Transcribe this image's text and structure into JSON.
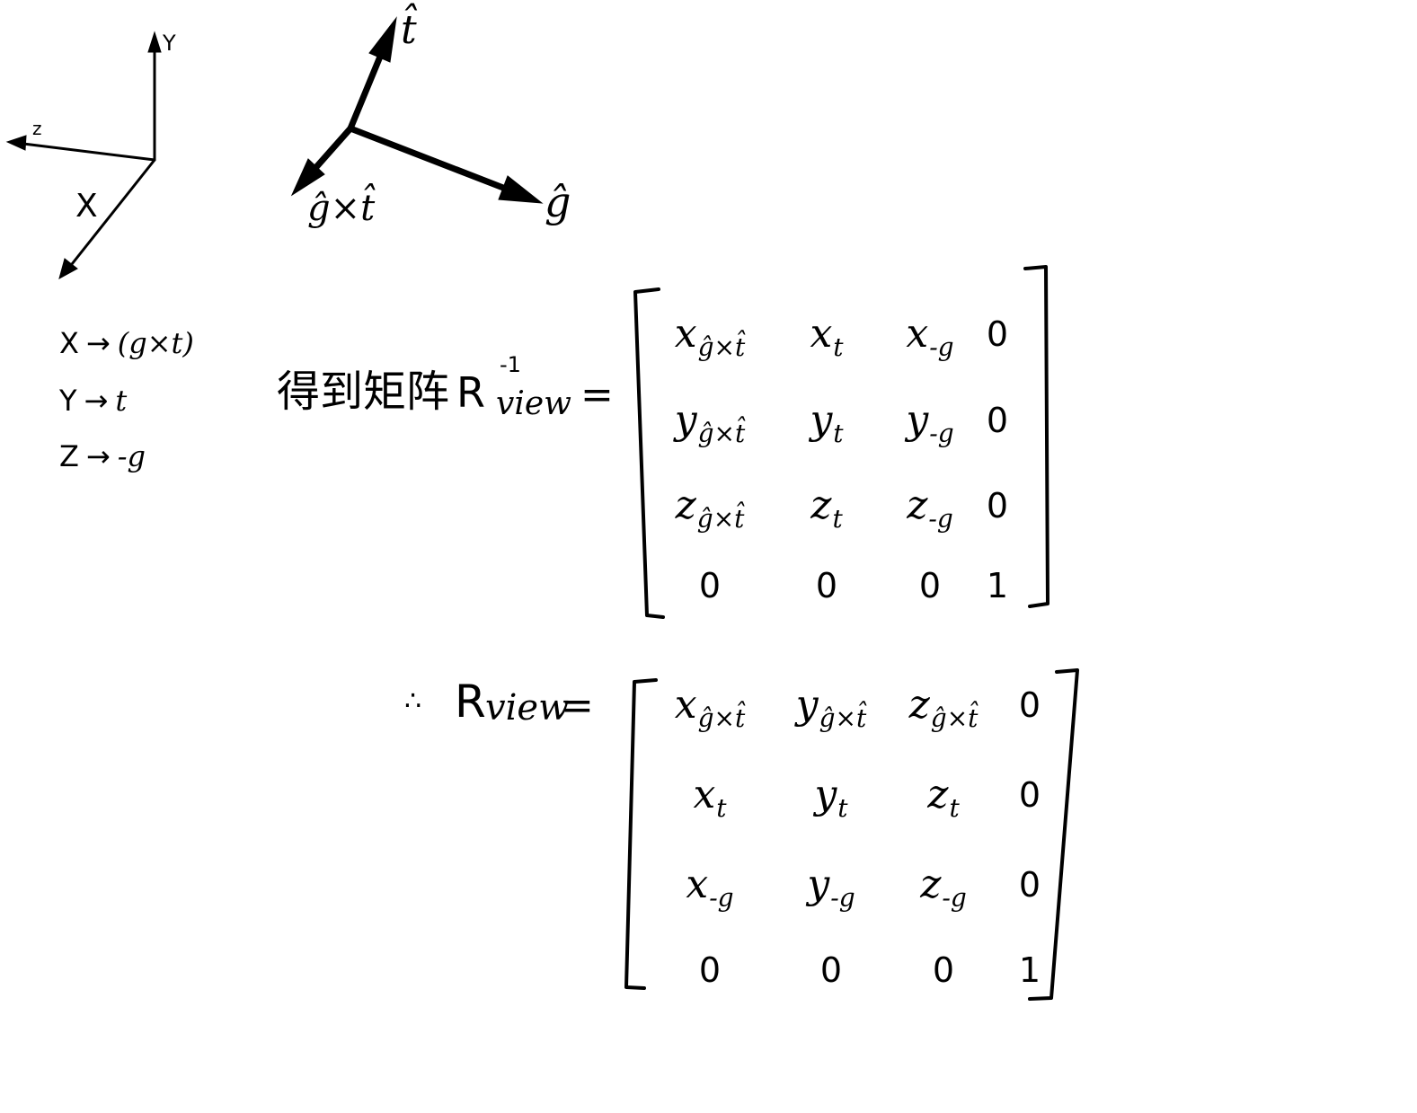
{
  "axes_diagram": {
    "y_label": "Y",
    "z_label": "z",
    "x_label": "X"
  },
  "vector_diagram": {
    "t_label": "t̂",
    "g_cross_t_label": "ĝ×t̂",
    "g_label": "ĝ"
  },
  "mapping": [
    {
      "lhs": "X",
      "arrow": "→",
      "rhs": "(g×t)"
    },
    {
      "lhs": "Y",
      "arrow": "→",
      "rhs": "t"
    },
    {
      "lhs": "Z",
      "arrow": "→",
      "rhs": "-g"
    }
  ],
  "inverse_equation": {
    "prefix": "得到矩阵",
    "symbol": "R",
    "superscript": "-1",
    "subscript": "view",
    "equals": "="
  },
  "matrix_inverse": [
    [
      {
        "base": "x",
        "sub": "ĝ×t̂"
      },
      {
        "base": "x",
        "sub": "t"
      },
      {
        "base": "x",
        "sub": "-g"
      },
      {
        "base": "0"
      }
    ],
    [
      {
        "base": "y",
        "sub": "ĝ×t̂"
      },
      {
        "base": "y",
        "sub": "t"
      },
      {
        "base": "y",
        "sub": "-g"
      },
      {
        "base": "0"
      }
    ],
    [
      {
        "base": "z",
        "sub": "ĝ×t̂"
      },
      {
        "base": "z",
        "sub": "t"
      },
      {
        "base": "z",
        "sub": "-g"
      },
      {
        "base": "0"
      }
    ],
    [
      {
        "base": "0"
      },
      {
        "base": "0"
      },
      {
        "base": "0"
      },
      {
        "base": "1"
      }
    ]
  ],
  "result_equation": {
    "therefore": "∴",
    "symbol": "R",
    "subscript": "view",
    "equals": "="
  },
  "matrix_view": [
    [
      {
        "base": "x",
        "sub": "ĝ×t̂"
      },
      {
        "base": "y",
        "sub": "ĝ×t̂"
      },
      {
        "base": "z",
        "sub": "ĝ×t̂"
      },
      {
        "base": "0"
      }
    ],
    [
      {
        "base": "x",
        "sub": "t"
      },
      {
        "base": "y",
        "sub": "t"
      },
      {
        "base": "z",
        "sub": "t"
      },
      {
        "base": "0"
      }
    ],
    [
      {
        "base": "x",
        "sub": "-g"
      },
      {
        "base": "y",
        "sub": "-g"
      },
      {
        "base": "z",
        "sub": "-g"
      },
      {
        "base": "0"
      }
    ],
    [
      {
        "base": "0"
      },
      {
        "base": "0"
      },
      {
        "base": "0"
      },
      {
        "base": "1"
      }
    ]
  ]
}
